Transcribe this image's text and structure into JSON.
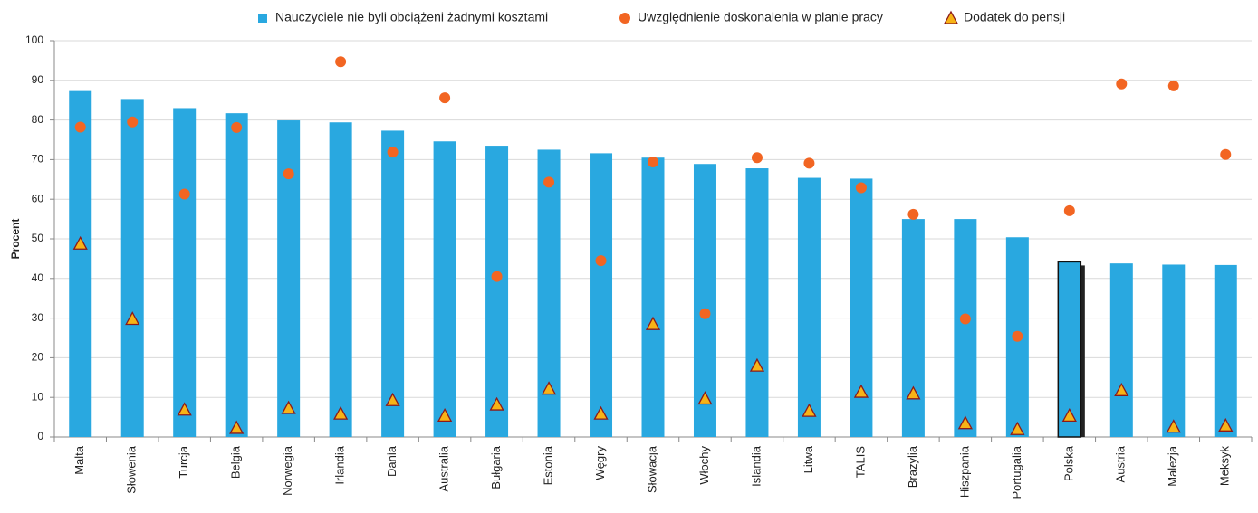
{
  "chart_data": {
    "type": "bar",
    "y_label": "Procent",
    "categories": [
      "Malta",
      "Słowenia",
      "Turcja",
      "Belgia",
      "Norwegia",
      "Irlandia",
      "Dania",
      "Australia",
      "Bułgaria",
      "Estonia",
      "Węgry",
      "Słowacja",
      "Włochy",
      "Islandia",
      "Litwa",
      "TALIS",
      "Brazylia",
      "Hiszpania",
      "Portugalia",
      "Polska",
      "Austria",
      "Malezja",
      "Meksyk"
    ],
    "series": [
      {
        "name": "Nauczyciele nie byli obciążeni żadnymi kosztami",
        "color": "#29a8e0",
        "marker": "bar",
        "values": [
          87.3,
          85.3,
          83,
          81.7,
          79.9,
          79.4,
          77.3,
          74.6,
          73.5,
          72.5,
          71.6,
          70.5,
          68.9,
          67.8,
          65.4,
          65.2,
          55,
          55,
          50.4,
          44.2,
          43.8,
          43.5,
          43.4
        ]
      },
      {
        "name": "Uwzględnienie doskonalenia w planie pracy",
        "color": "#f26522",
        "marker": "circle",
        "values": [
          78.2,
          79.5,
          61.3,
          78.1,
          66.4,
          94.7,
          71.9,
          85.6,
          40.5,
          64.3,
          44.5,
          69.4,
          31.1,
          70.5,
          69.1,
          62.9,
          56.2,
          29.8,
          25.4,
          57.1,
          89.1,
          88.6,
          71.3
        ]
      },
      {
        "name": "Dodatek do pensji",
        "color": "#f7b316",
        "marker": "triangle",
        "values": [
          48.8,
          29.8,
          6.9,
          2.3,
          7.3,
          5.9,
          9.3,
          5.4,
          8.2,
          12.2,
          5.9,
          28.5,
          9.7,
          18,
          6.6,
          11.4,
          11,
          3.5,
          2,
          5.4,
          11.8,
          2.6,
          2.9
        ]
      }
    ],
    "highlight": "Polska",
    "ylim": [
      0,
      100
    ],
    "yticks": [
      0,
      10,
      20,
      30,
      40,
      50,
      60,
      70,
      80,
      90,
      100
    ],
    "grid": true,
    "legend": "top"
  }
}
